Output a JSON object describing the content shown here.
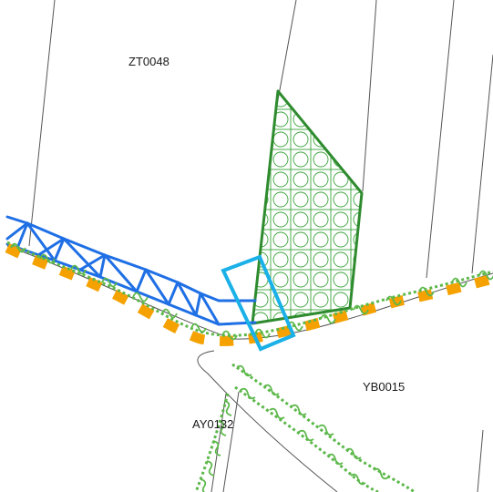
{
  "map": {
    "parcels": [
      {
        "id": "ZT0048"
      },
      {
        "id": "YB0015"
      },
      {
        "id": "AY0132"
      }
    ],
    "colors": {
      "background": "#ffffff",
      "parcel_boundary": "#555555",
      "green_hatch_area": "#2e8b2e",
      "hedge_line": "#5cb84a",
      "orange_dash": "#f5a100",
      "blue_truss": "#1f6fe5",
      "cyan_selection": "#1ab0e8",
      "label_text": "#1a1a1a"
    },
    "icons": {
      "selection": "cyan-rectangle-selection-icon",
      "hatched_area": "grid-circle-hatch-pattern",
      "hedge": "wavy-hedge-line",
      "truss": "blue-truss-line"
    }
  }
}
